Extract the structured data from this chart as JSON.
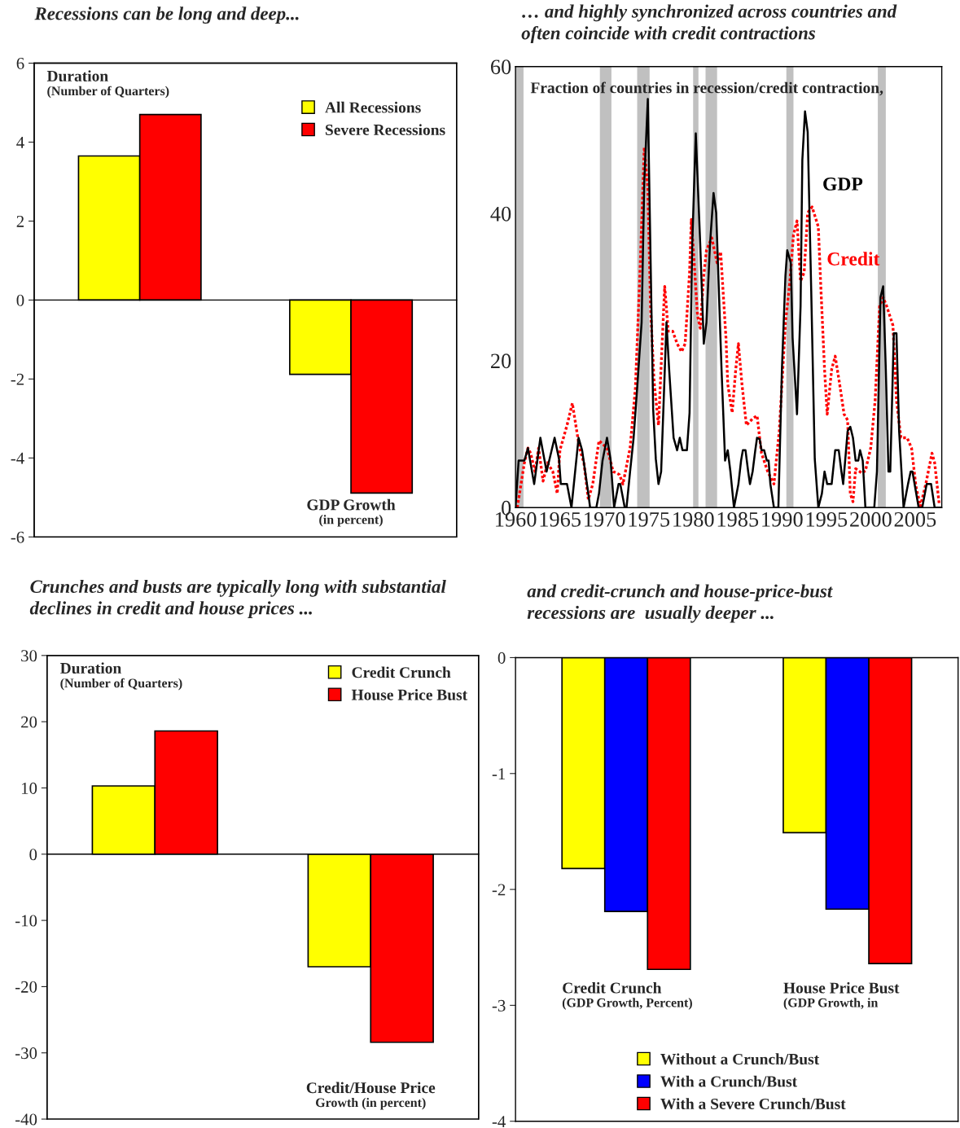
{
  "chart_data": [
    {
      "type": "bar",
      "title": "Recessions can be long and deep...",
      "categories": [
        "Duration\n(Number of Quarters)",
        "GDP Growth\n(in percent)"
      ],
      "series": [
        {
          "name": "All Recessions",
          "color": "#ffff00",
          "values": [
            3.65,
            -1.88
          ]
        },
        {
          "name": "Severe Recessions",
          "color": "#ff0000",
          "values": [
            4.7,
            -4.89
          ]
        }
      ],
      "ylim": [
        -6,
        6
      ],
      "yticks": [
        -6,
        -4,
        -2,
        0,
        2,
        4,
        6
      ],
      "legend": "right"
    },
    {
      "type": "line",
      "title": "… and highly synchronized across countries and often coincide with credit contractions",
      "annotations": [
        "Fraction of countries in recession/credit contraction,"
      ],
      "series": [
        {
          "name": "GDP",
          "color": "#000000",
          "line_style": "solid",
          "x": [
            1960.0,
            1960.35,
            1961.0,
            1961.4,
            1962.1,
            1962.8,
            1963.5,
            1964.4,
            1964.9,
            1965.1,
            1965.8,
            1966.3,
            1967.1,
            1967.5,
            1968.2,
            1968.4,
            1969.1,
            1969.4,
            1969.8,
            1970.3,
            1970.7,
            1971.1,
            1971.6,
            1971.8,
            1972.3,
            1972.5,
            1972.9,
            1973.3,
            1973.7,
            1974.2,
            1974.5,
            1974.9,
            1975.1,
            1975.5,
            1975.8,
            1976.1,
            1976.4,
            1977.0,
            1977.3,
            1977.8,
            1978.2,
            1978.5,
            1978.8,
            1979.3,
            1979.6,
            1979.9,
            1980.3,
            1980.8,
            1981.2,
            1981.5,
            1981.9,
            1982.3,
            1982.6,
            1983.2,
            1983.5,
            1983.6,
            1983.9,
            1984.2,
            1984.6,
            1985.1,
            1985.4,
            1985.6,
            1985.9,
            1986.2,
            1986.4,
            1986.7,
            1987.0,
            1987.2,
            1987.5,
            1987.7,
            1988.0,
            1988.3,
            1988.5,
            1988.7,
            1989.1,
            1989.6,
            1990.0,
            1990.4,
            1990.6,
            1991.0,
            1991.2,
            1991.7,
            1992.1,
            1992.3,
            1992.6,
            1992.9,
            1993.3,
            1993.7,
            1994.1,
            1994.5,
            1994.8,
            1995.1,
            1995.6,
            1996.0,
            1996.4,
            1996.7,
            1996.9,
            1997.4,
            1997.7,
            1998.0,
            1998.3,
            1998.6,
            1998.8,
            1999.1,
            1999.4,
            2000.4,
            2000.7,
            2001.1,
            2001.4,
            2001.7,
            2002.0,
            2002.2,
            2002.6,
            2002.9,
            2003.2,
            2003.7,
            2004.2,
            2004.5,
            2004.7,
            2005.4,
            2005.8,
            2006.3,
            2006.8,
            2007.2,
            2007.9
          ],
          "values": [
            0,
            6.4,
            6.4,
            8.1,
            3.2,
            9.5,
            4.9,
            9.5,
            6.6,
            3.2,
            3.2,
            0,
            9.5,
            7.8,
            1.9,
            0,
            0,
            1.9,
            6.4,
            9.5,
            6.6,
            0,
            3.2,
            3.2,
            0,
            0,
            4.9,
            9.5,
            16.3,
            25.2,
            44.3,
            55.6,
            41.4,
            13.4,
            6.6,
            3.2,
            4.9,
            25.2,
            18.8,
            9.5,
            7.8,
            9.5,
            7.8,
            7.8,
            12.9,
            35.8,
            50.9,
            35.8,
            22.3,
            25.2,
            35.8,
            42.8,
            40.1,
            18.8,
            9.5,
            6.4,
            7.8,
            4.9,
            0,
            3.2,
            6.4,
            7.8,
            7.8,
            4.9,
            3.2,
            4.9,
            7.8,
            9.5,
            9.3,
            7.8,
            7.8,
            6.4,
            6.4,
            3.2,
            0,
            0,
            18.8,
            31.6,
            35.0,
            33.3,
            23.1,
            12.7,
            27.4,
            47.3,
            53.9,
            51.1,
            29.5,
            6.6,
            0,
            1.9,
            4.9,
            3.2,
            3.2,
            7.8,
            7.8,
            4.9,
            3.2,
            10.4,
            11.0,
            9.5,
            6.4,
            6.4,
            7.8,
            6.4,
            0,
            0,
            4.9,
            28.6,
            30.1,
            18.8,
            4.9,
            4.9,
            23.7,
            23.7,
            10.4,
            0,
            3.2,
            4.9,
            4.9,
            0,
            0,
            3.2,
            3.2,
            0,
            0
          ]
        },
        {
          "name": "Credit",
          "color": "#ff0000",
          "line_style": "dotted",
          "x": [
            1960.2,
            1961.0,
            1961.4,
            1961.7,
            1962.2,
            1962.6,
            1963.1,
            1963.6,
            1964.2,
            1964.7,
            1965.0,
            1965.8,
            1966.4,
            1967.2,
            1967.7,
            1968.2,
            1968.7,
            1969.4,
            1970.3,
            1971.0,
            1971.7,
            1972.1,
            1972.9,
            1973.5,
            1974.0,
            1974.5,
            1974.9,
            1975.2,
            1975.6,
            1976.1,
            1976.4,
            1976.8,
            1977.2,
            1977.7,
            1978.2,
            1978.7,
            1979.1,
            1979.6,
            1979.8,
            1980.1,
            1980.5,
            1980.8,
            1981.2,
            1981.5,
            1982.1,
            1982.7,
            1983.1,
            1983.7,
            1983.9,
            1984.4,
            1984.8,
            1985.1,
            1985.5,
            1986.0,
            1986.7,
            1987.2,
            1987.7,
            1988.4,
            1989.1,
            1989.7,
            1990.4,
            1990.9,
            1991.3,
            1991.7,
            1992.1,
            1992.5,
            1992.9,
            1993.4,
            1994.1,
            1994.4,
            1994.8,
            1995.1,
            1995.6,
            1996.0,
            1996.5,
            1997.0,
            1997.4,
            1997.7,
            1998.0,
            1998.3,
            1999.0,
            1999.4,
            2000.0,
            2000.5,
            2001.0,
            2001.4,
            2001.8,
            2002.5,
            2002.9,
            2003.4,
            2004.1,
            2004.6,
            2005.1,
            2005.6,
            2006.2,
            2006.9,
            2007.2,
            2007.7
          ],
          "values": [
            0,
            6.1,
            8.1,
            7.4,
            4.9,
            8.1,
            3.6,
            6.1,
            4.9,
            1.9,
            7.8,
            11.2,
            14.2,
            8.1,
            6.1,
            1.1,
            3.2,
            9.1,
            8.1,
            4.9,
            4.5,
            3.2,
            8.1,
            16.3,
            31.6,
            49.0,
            43.5,
            27.4,
            17.2,
            11.2,
            19.3,
            30.1,
            24.0,
            24.0,
            22.3,
            21.2,
            22.3,
            32.0,
            39.2,
            33.7,
            26.1,
            24.4,
            31.6,
            35.0,
            36.7,
            33.3,
            34.8,
            23.1,
            16.8,
            12.9,
            18.8,
            22.3,
            16.8,
            11.2,
            12.1,
            12.5,
            7.4,
            4.9,
            3.2,
            10.4,
            25.2,
            30.8,
            37.1,
            39.0,
            30.8,
            32.0,
            40.1,
            40.9,
            38.2,
            29.5,
            18.8,
            12.7,
            18.8,
            20.6,
            16.8,
            12.7,
            11.9,
            1.9,
            0.8,
            5.3,
            4.7,
            5.0,
            8.1,
            14.6,
            27.4,
            28.6,
            27.4,
            24.8,
            14.6,
            9.5,
            9.5,
            8.1,
            2.8,
            0.2,
            3.2,
            7.4,
            6.1,
            0.6
          ]
        }
      ],
      "bands": [
        {
          "axis": "x",
          "from": 1960.0,
          "to": 1960.9,
          "color": "#c0c0c0"
        },
        {
          "axis": "x",
          "from": 1969.5,
          "to": 1970.8,
          "color": "#c0c0c0"
        },
        {
          "axis": "x",
          "from": 1973.7,
          "to": 1975.1,
          "color": "#c0c0c0"
        },
        {
          "axis": "x",
          "from": 1980.0,
          "to": 1980.6,
          "color": "#c0c0c0"
        },
        {
          "axis": "x",
          "from": 1981.4,
          "to": 1982.7,
          "color": "#c0c0c0"
        },
        {
          "axis": "x",
          "from": 1990.5,
          "to": 1991.3,
          "color": "#c0c0c0"
        },
        {
          "axis": "x",
          "from": 2000.8,
          "to": 2001.7,
          "color": "#c0c0c0"
        }
      ],
      "xlim": [
        1960,
        2008
      ],
      "xticks": [
        1960,
        1965,
        1970,
        1975,
        1980,
        1985,
        1990,
        1995,
        2000,
        2005
      ],
      "ylim": [
        0,
        60
      ],
      "yticks": [
        0,
        20,
        40,
        60
      ],
      "marker": "none",
      "legend": false
    },
    {
      "type": "bar",
      "title": "Crunches and busts are typically long with substantial declines in credit and house prices ...",
      "categories": [
        "Duration\n(Number of Quarters)",
        "Credit/House Price\nGrowth (in percent)"
      ],
      "series": [
        {
          "name": "Credit Crunch",
          "color": "#ffff00",
          "values": [
            10.3,
            -17.0
          ]
        },
        {
          "name": "House Price Bust",
          "color": "#ff0000",
          "values": [
            18.6,
            -28.4
          ]
        }
      ],
      "ylim": [
        -40,
        30
      ],
      "yticks": [
        -40,
        -30,
        -20,
        -10,
        0,
        10,
        20,
        30
      ],
      "legend": "top right"
    },
    {
      "type": "bar",
      "title": "and credit-crunch and house-price-bust recessions are  usually deeper ...",
      "categories": [
        "Credit Crunch\n(GDP Growth, Percent)",
        "House Price Bust\n(GDP Growth, in"
      ],
      "series": [
        {
          "name": "Without a Crunch/Bust",
          "color": "#ffff00",
          "values": [
            -1.82,
            -1.51
          ]
        },
        {
          "name": "With a Crunch/Bust",
          "color": "#0000ff",
          "values": [
            -2.19,
            -2.17
          ]
        },
        {
          "name": "With a Severe Crunch/Bust",
          "color": "#ff0000",
          "values": [
            -2.69,
            -2.64
          ]
        }
      ],
      "ylim": [
        -4,
        0
      ],
      "yticks": [
        -4,
        -3,
        -2,
        -1,
        0
      ],
      "legend": "bottom"
    }
  ]
}
